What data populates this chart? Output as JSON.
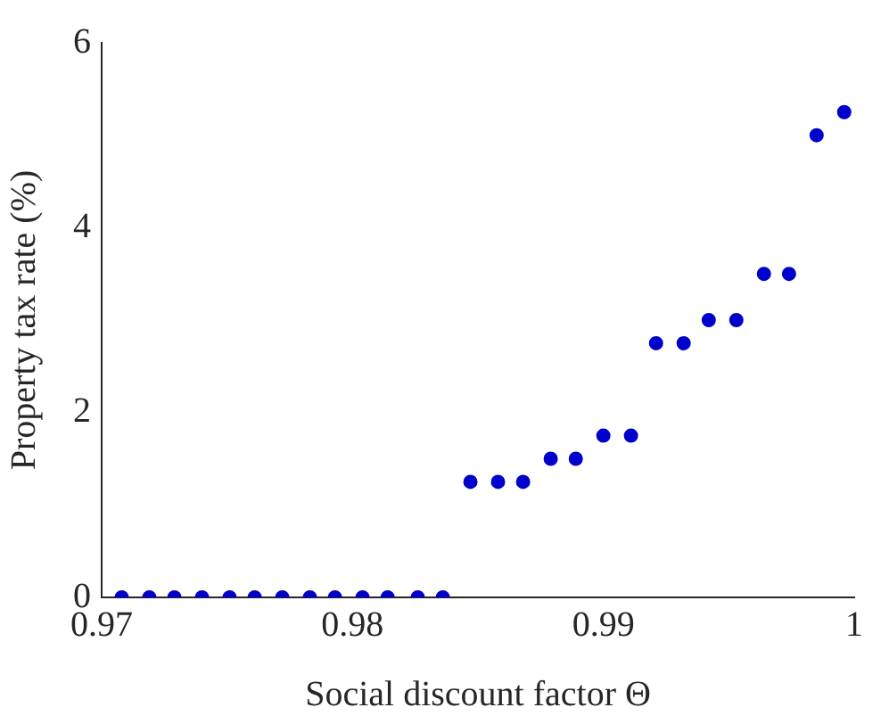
{
  "chart_data": {
    "type": "scatter",
    "xlabel": "Social discount factor Θ",
    "ylabel": "Property tax rate (%)",
    "x": [
      0.9708,
      0.9719,
      0.9729,
      0.974,
      0.9751,
      0.9761,
      0.9772,
      0.9783,
      0.9793,
      0.9804,
      0.9814,
      0.9826,
      0.9836,
      0.9847,
      0.9858,
      0.9868,
      0.9879,
      0.9889,
      0.99,
      0.9911,
      0.9921,
      0.9932,
      0.9942,
      0.9953,
      0.9964,
      0.9974,
      0.9985,
      0.9996
    ],
    "series": [
      {
        "color": "#0000cc",
        "values": [
          0,
          0,
          0,
          0,
          0,
          0,
          0,
          0,
          0,
          0,
          0,
          0,
          0,
          1.25,
          1.25,
          1.25,
          1.5,
          1.5,
          1.75,
          1.75,
          2.75,
          2.75,
          3,
          3,
          3.5,
          3.5,
          5,
          5.25
        ]
      }
    ],
    "xlim": [
      0.97,
      1
    ],
    "xticks": [
      0.97,
      0.98,
      0.99,
      1
    ],
    "ylim": [
      0,
      6
    ],
    "yticks": [
      0,
      2,
      4,
      6
    ],
    "grid": false,
    "legend": false,
    "marker": "circle"
  }
}
